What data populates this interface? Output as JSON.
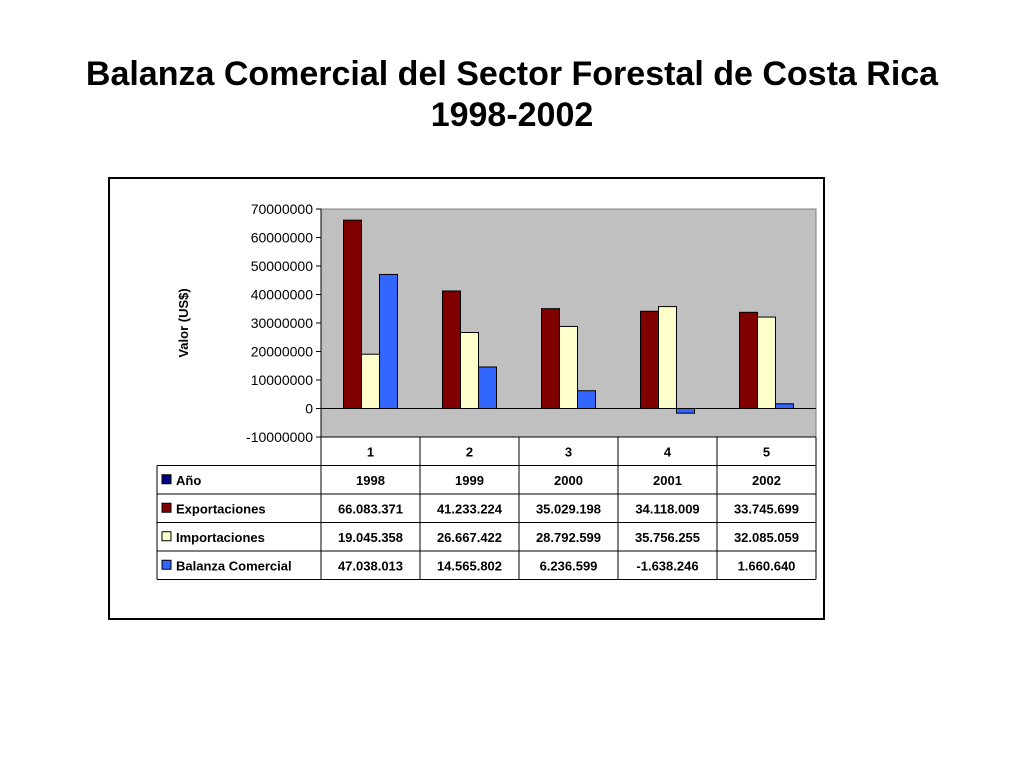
{
  "title": {
    "line1": "Balanza Comercial del Sector Forestal de Costa Rica",
    "line2": "1998-2002"
  },
  "colors": {
    "plot_bg": "#C0C0C0",
    "Año": "#000080",
    "Exportaciones": "#800000",
    "Importaciones": "#FFFFCC",
    "Balanza Comercial": "#3366FF"
  },
  "chart_data": {
    "type": "bar",
    "title": "Balanza Comercial del Sector Forestal de Costa Rica 1998-2002",
    "xlabel": "",
    "ylabel": "Valor (US$)",
    "ylim": [
      -10000000,
      70000000
    ],
    "yticks": [
      -10000000,
      0,
      10000000,
      20000000,
      30000000,
      40000000,
      50000000,
      60000000,
      70000000
    ],
    "ytick_labels": [
      "-10000000",
      "0",
      "10000000",
      "20000000",
      "30000000",
      "40000000",
      "50000000",
      "60000000",
      "70000000"
    ],
    "grid": false,
    "legend": "data-table",
    "categories": [
      "1",
      "2",
      "3",
      "4",
      "5"
    ],
    "series": [
      {
        "name": "Año",
        "values": [
          1998,
          1999,
          2000,
          2001,
          2002
        ],
        "labels": [
          "1998",
          "1999",
          "2000",
          "2001",
          "2002"
        ]
      },
      {
        "name": "Exportaciones",
        "values": [
          66083371,
          41233224,
          35029198,
          34118009,
          33745699
        ],
        "labels": [
          "66.083.371",
          "41.233.224",
          "35.029.198",
          "34.118.009",
          "33.745.699"
        ]
      },
      {
        "name": "Importaciones",
        "values": [
          19045358,
          26667422,
          28792599,
          35756255,
          32085059
        ],
        "labels": [
          "19.045.358",
          "26.667.422",
          "28.792.599",
          "35.756.255",
          "32.085.059"
        ]
      },
      {
        "name": "Balanza Comercial",
        "values": [
          47038013,
          14565802,
          6236599,
          -1638246,
          1660640
        ],
        "labels": [
          "47.038.013",
          "14.565.802",
          "6.236.599",
          "-1.638.246",
          "1.660.640"
        ]
      }
    ],
    "plotted_series": [
      "Exportaciones",
      "Importaciones",
      "Balanza Comercial"
    ]
  }
}
